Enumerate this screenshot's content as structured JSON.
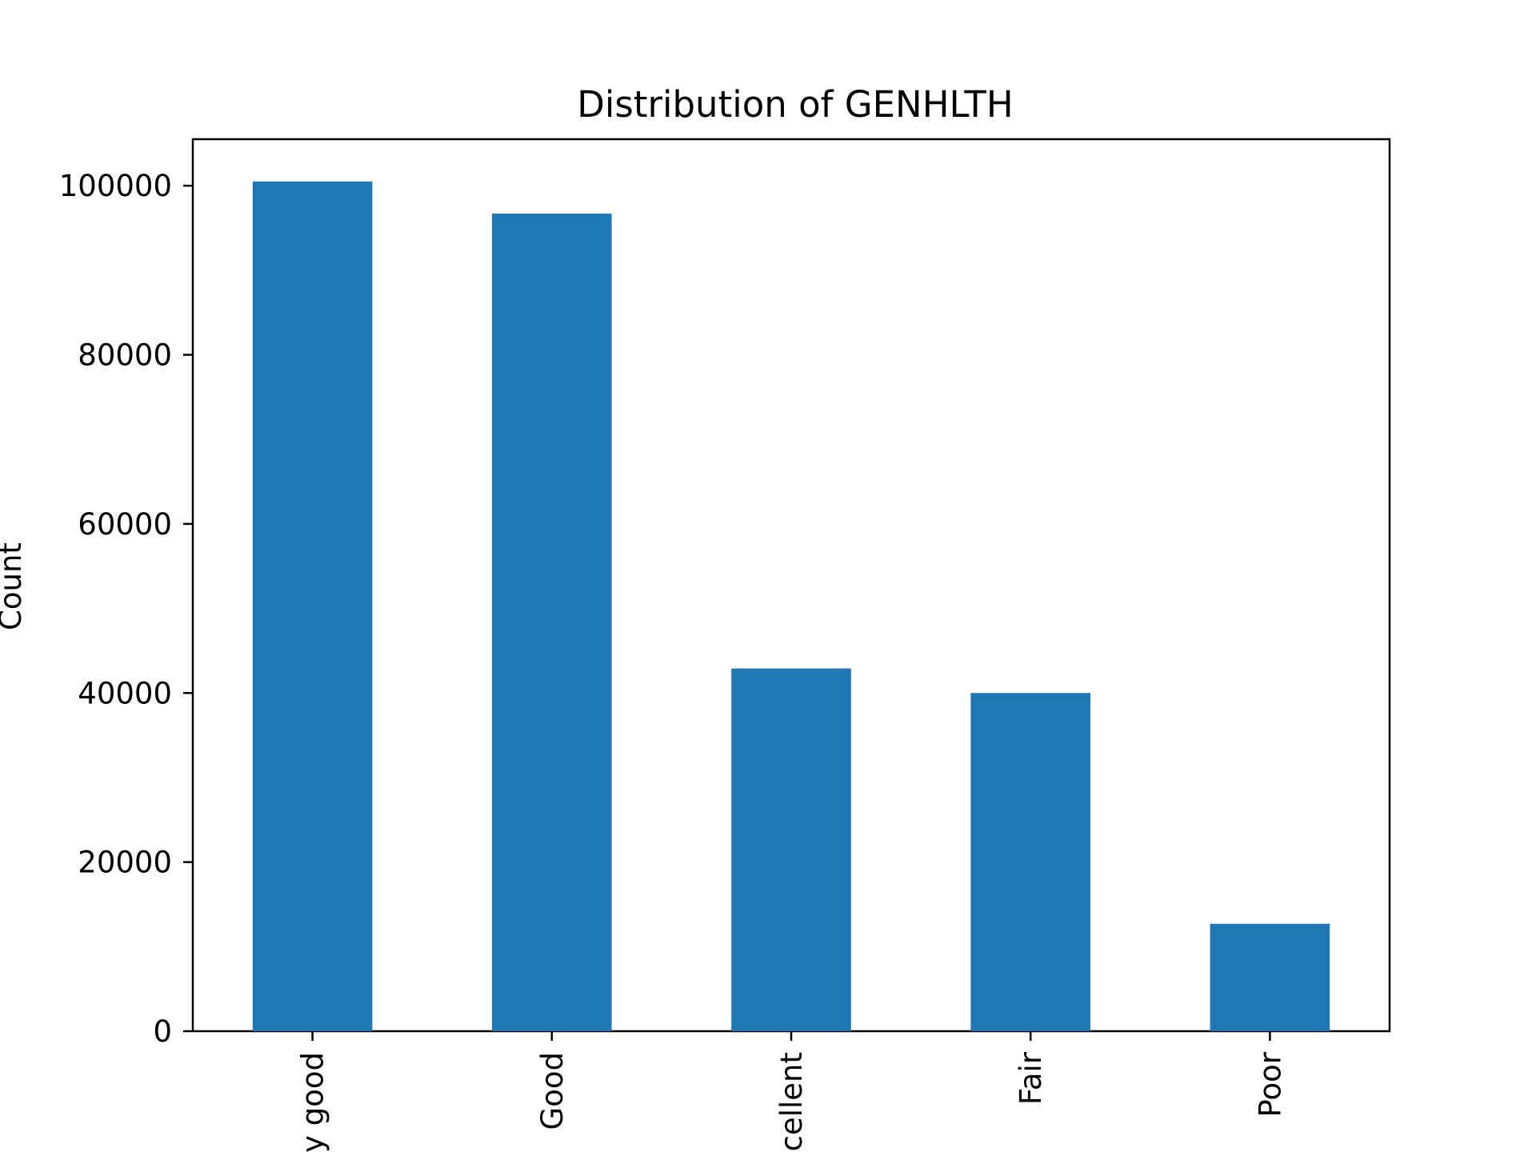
{
  "chart_data": {
    "type": "bar",
    "title": "Distribution of GENHLTH",
    "xlabel": "",
    "ylabel": "Count",
    "categories": [
      "Very good",
      "Good",
      "Excellent",
      "Fair",
      "Poor"
    ],
    "values": [
      100500,
      96700,
      42900,
      40000,
      12700
    ],
    "ylim": [
      0,
      105500
    ],
    "yticks": [
      0,
      20000,
      40000,
      60000,
      80000,
      100000
    ],
    "ytick_labels": [
      "0",
      "20000",
      "40000",
      "60000",
      "80000",
      "100000"
    ],
    "grid": false,
    "legend": "none",
    "bar_color": "#1f77b4",
    "axis_color": "#000000"
  }
}
